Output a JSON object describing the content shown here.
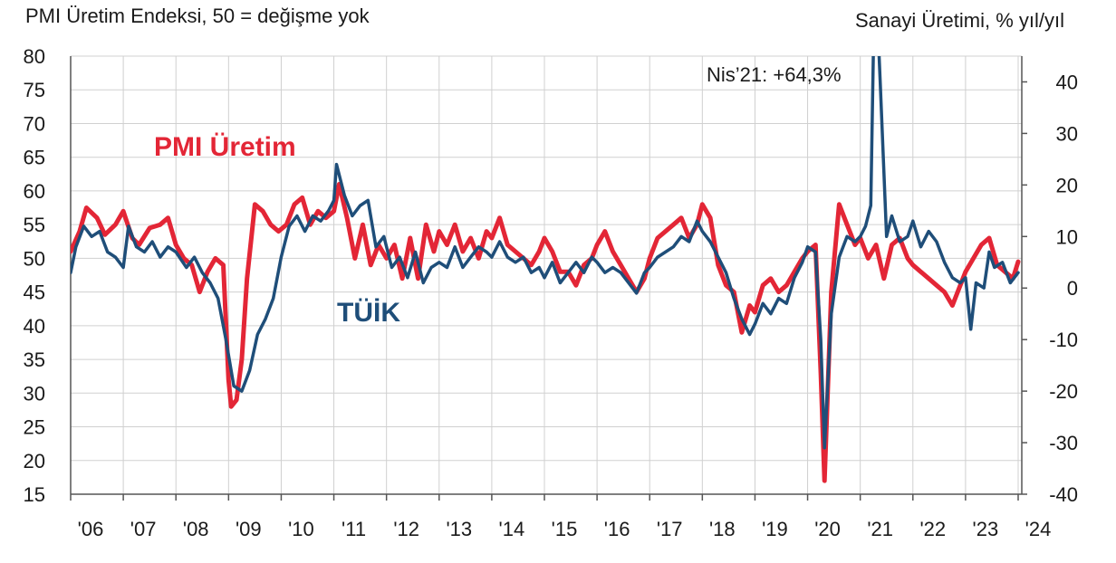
{
  "chart_data": {
    "type": "line",
    "title_left": "PMI Üretim Endeksi, 50 = değişme yok",
    "title_right": "Sanayi Üretimi, % yıl/yıl",
    "annotation": "Nis’21: +64,3%",
    "y_left": {
      "min": 15,
      "max": 80,
      "ticks": [
        80,
        75,
        70,
        65,
        60,
        55,
        50,
        45,
        40,
        35,
        30,
        25,
        20,
        15
      ]
    },
    "y_right": {
      "min": -40,
      "max": 45,
      "ticks": [
        40,
        30,
        20,
        10,
        0,
        -10,
        -20,
        -30,
        -40
      ]
    },
    "x_ticks": [
      "'06",
      "'07",
      "'08",
      "'09",
      "'10",
      "'11",
      "'12",
      "'13",
      "'14",
      "'15",
      "'16",
      "'17",
      "'18",
      "'19",
      "'20",
      "'21",
      "'22",
      "'23",
      "'24"
    ],
    "x_range": [
      2006.0,
      2024.0
    ],
    "grid": true,
    "series": [
      {
        "name": "PMI Üretim",
        "axis": "left",
        "color": "#e32636",
        "points": [
          [
            2006.0,
            51
          ],
          [
            2006.17,
            54
          ],
          [
            2006.3,
            57.5
          ],
          [
            2006.5,
            56
          ],
          [
            2006.65,
            53.5
          ],
          [
            2006.85,
            55
          ],
          [
            2007.0,
            57
          ],
          [
            2007.17,
            53
          ],
          [
            2007.3,
            52
          ],
          [
            2007.5,
            54.5
          ],
          [
            2007.7,
            55
          ],
          [
            2007.85,
            56
          ],
          [
            2008.0,
            52
          ],
          [
            2008.15,
            50
          ],
          [
            2008.3,
            49
          ],
          [
            2008.45,
            45
          ],
          [
            2008.6,
            48
          ],
          [
            2008.75,
            50
          ],
          [
            2008.9,
            49
          ],
          [
            2009.0,
            32
          ],
          [
            2009.05,
            28
          ],
          [
            2009.15,
            29
          ],
          [
            2009.25,
            35
          ],
          [
            2009.35,
            47
          ],
          [
            2009.5,
            58
          ],
          [
            2009.65,
            57
          ],
          [
            2009.8,
            55
          ],
          [
            2009.95,
            54
          ],
          [
            2010.1,
            55
          ],
          [
            2010.25,
            58
          ],
          [
            2010.4,
            59
          ],
          [
            2010.55,
            55
          ],
          [
            2010.7,
            57
          ],
          [
            2010.85,
            56
          ],
          [
            2011.0,
            57
          ],
          [
            2011.1,
            61
          ],
          [
            2011.25,
            56
          ],
          [
            2011.4,
            50
          ],
          [
            2011.55,
            55
          ],
          [
            2011.7,
            49
          ],
          [
            2011.85,
            52
          ],
          [
            2012.0,
            50
          ],
          [
            2012.15,
            52
          ],
          [
            2012.3,
            47
          ],
          [
            2012.45,
            53
          ],
          [
            2012.6,
            47
          ],
          [
            2012.75,
            55
          ],
          [
            2012.9,
            51
          ],
          [
            2013.0,
            54
          ],
          [
            2013.15,
            52
          ],
          [
            2013.3,
            55
          ],
          [
            2013.45,
            51
          ],
          [
            2013.6,
            53
          ],
          [
            2013.75,
            50
          ],
          [
            2013.9,
            54
          ],
          [
            2014.0,
            53
          ],
          [
            2014.15,
            56
          ],
          [
            2014.3,
            52
          ],
          [
            2014.45,
            51
          ],
          [
            2014.6,
            50
          ],
          [
            2014.75,
            49
          ],
          [
            2014.9,
            51
          ],
          [
            2015.0,
            53
          ],
          [
            2015.15,
            51
          ],
          [
            2015.3,
            48
          ],
          [
            2015.45,
            48
          ],
          [
            2015.6,
            46
          ],
          [
            2015.75,
            49
          ],
          [
            2015.9,
            50
          ],
          [
            2016.0,
            52
          ],
          [
            2016.15,
            54
          ],
          [
            2016.3,
            51
          ],
          [
            2016.45,
            49
          ],
          [
            2016.6,
            47
          ],
          [
            2016.75,
            45
          ],
          [
            2016.9,
            47
          ],
          [
            2017.0,
            50
          ],
          [
            2017.15,
            53
          ],
          [
            2017.3,
            54
          ],
          [
            2017.45,
            55
          ],
          [
            2017.6,
            56
          ],
          [
            2017.75,
            53
          ],
          [
            2017.9,
            55
          ],
          [
            2018.0,
            58
          ],
          [
            2018.15,
            56
          ],
          [
            2018.3,
            49
          ],
          [
            2018.45,
            46
          ],
          [
            2018.6,
            45
          ],
          [
            2018.75,
            39
          ],
          [
            2018.9,
            43
          ],
          [
            2019.0,
            42
          ],
          [
            2019.15,
            46
          ],
          [
            2019.3,
            47
          ],
          [
            2019.45,
            45
          ],
          [
            2019.6,
            46
          ],
          [
            2019.75,
            48
          ],
          [
            2019.9,
            50
          ],
          [
            2020.0,
            51
          ],
          [
            2020.15,
            52
          ],
          [
            2020.25,
            33
          ],
          [
            2020.32,
            17
          ],
          [
            2020.45,
            45
          ],
          [
            2020.6,
            58
          ],
          [
            2020.75,
            55
          ],
          [
            2020.9,
            52
          ],
          [
            2021.0,
            53
          ],
          [
            2021.15,
            50
          ],
          [
            2021.3,
            52
          ],
          [
            2021.45,
            47
          ],
          [
            2021.6,
            52
          ],
          [
            2021.75,
            53
          ],
          [
            2021.9,
            50
          ],
          [
            2022.0,
            49
          ],
          [
            2022.15,
            48
          ],
          [
            2022.3,
            47
          ],
          [
            2022.45,
            46
          ],
          [
            2022.6,
            45
          ],
          [
            2022.75,
            43
          ],
          [
            2022.9,
            46
          ],
          [
            2023.0,
            48
          ],
          [
            2023.15,
            50
          ],
          [
            2023.3,
            52
          ],
          [
            2023.45,
            53
          ],
          [
            2023.6,
            49
          ],
          [
            2023.75,
            48
          ],
          [
            2023.9,
            47
          ],
          [
            2024.0,
            49.5
          ]
        ]
      },
      {
        "name": "TÜİK",
        "axis": "right",
        "color": "#1f4e79",
        "points": [
          [
            2006.0,
            3
          ],
          [
            2006.1,
            8
          ],
          [
            2006.25,
            12
          ],
          [
            2006.4,
            10
          ],
          [
            2006.55,
            11
          ],
          [
            2006.7,
            7
          ],
          [
            2006.85,
            6
          ],
          [
            2007.0,
            4
          ],
          [
            2007.1,
            12
          ],
          [
            2007.25,
            8
          ],
          [
            2007.4,
            7
          ],
          [
            2007.55,
            9
          ],
          [
            2007.7,
            6
          ],
          [
            2007.85,
            8
          ],
          [
            2008.0,
            7
          ],
          [
            2008.2,
            4
          ],
          [
            2008.35,
            6
          ],
          [
            2008.5,
            3
          ],
          [
            2008.65,
            1
          ],
          [
            2008.8,
            -2
          ],
          [
            2008.95,
            -10
          ],
          [
            2009.1,
            -19
          ],
          [
            2009.25,
            -20
          ],
          [
            2009.4,
            -16
          ],
          [
            2009.55,
            -9
          ],
          [
            2009.7,
            -6
          ],
          [
            2009.85,
            -2
          ],
          [
            2010.0,
            6
          ],
          [
            2010.15,
            12
          ],
          [
            2010.3,
            14
          ],
          [
            2010.45,
            11
          ],
          [
            2010.6,
            14
          ],
          [
            2010.75,
            13
          ],
          [
            2010.9,
            15
          ],
          [
            2011.0,
            17
          ],
          [
            2011.05,
            24
          ],
          [
            2011.2,
            18
          ],
          [
            2011.35,
            14
          ],
          [
            2011.5,
            16
          ],
          [
            2011.65,
            17
          ],
          [
            2011.8,
            8
          ],
          [
            2011.95,
            10
          ],
          [
            2012.1,
            4
          ],
          [
            2012.25,
            6
          ],
          [
            2012.4,
            2
          ],
          [
            2012.55,
            7
          ],
          [
            2012.7,
            1
          ],
          [
            2012.85,
            4
          ],
          [
            2013.0,
            5
          ],
          [
            2013.15,
            4
          ],
          [
            2013.3,
            8
          ],
          [
            2013.45,
            4
          ],
          [
            2013.6,
            6
          ],
          [
            2013.75,
            8
          ],
          [
            2013.9,
            7
          ],
          [
            2014.0,
            6
          ],
          [
            2014.15,
            9
          ],
          [
            2014.3,
            6
          ],
          [
            2014.45,
            5
          ],
          [
            2014.6,
            6
          ],
          [
            2014.75,
            3
          ],
          [
            2014.9,
            4
          ],
          [
            2015.0,
            2
          ],
          [
            2015.15,
            5
          ],
          [
            2015.3,
            1
          ],
          [
            2015.45,
            3
          ],
          [
            2015.6,
            5
          ],
          [
            2015.75,
            3
          ],
          [
            2015.9,
            6
          ],
          [
            2016.0,
            5
          ],
          [
            2016.15,
            3
          ],
          [
            2016.3,
            4
          ],
          [
            2016.45,
            3
          ],
          [
            2016.6,
            1
          ],
          [
            2016.75,
            -1
          ],
          [
            2016.9,
            3
          ],
          [
            2017.0,
            4
          ],
          [
            2017.15,
            6
          ],
          [
            2017.3,
            7
          ],
          [
            2017.45,
            8
          ],
          [
            2017.6,
            10
          ],
          [
            2017.75,
            9
          ],
          [
            2017.9,
            13
          ],
          [
            2018.0,
            11
          ],
          [
            2018.15,
            9
          ],
          [
            2018.3,
            6
          ],
          [
            2018.45,
            3
          ],
          [
            2018.6,
            -2
          ],
          [
            2018.75,
            -6
          ],
          [
            2018.9,
            -9
          ],
          [
            2019.0,
            -7
          ],
          [
            2019.15,
            -3
          ],
          [
            2019.3,
            -5
          ],
          [
            2019.45,
            -2
          ],
          [
            2019.6,
            -3
          ],
          [
            2019.75,
            2
          ],
          [
            2019.9,
            5
          ],
          [
            2020.0,
            8
          ],
          [
            2020.15,
            7
          ],
          [
            2020.25,
            -10
          ],
          [
            2020.32,
            -31
          ],
          [
            2020.45,
            -5
          ],
          [
            2020.6,
            6
          ],
          [
            2020.75,
            10
          ],
          [
            2020.9,
            9
          ],
          [
            2021.0,
            10
          ],
          [
            2021.1,
            12
          ],
          [
            2021.2,
            16
          ],
          [
            2021.28,
            64
          ],
          [
            2021.38,
            40
          ],
          [
            2021.5,
            10
          ],
          [
            2021.6,
            14
          ],
          [
            2021.75,
            9
          ],
          [
            2021.9,
            10
          ],
          [
            2022.0,
            13
          ],
          [
            2022.15,
            8
          ],
          [
            2022.3,
            11
          ],
          [
            2022.45,
            9
          ],
          [
            2022.6,
            5
          ],
          [
            2022.75,
            2
          ],
          [
            2022.9,
            1
          ],
          [
            2023.0,
            2
          ],
          [
            2023.1,
            -8
          ],
          [
            2023.2,
            1
          ],
          [
            2023.35,
            0
          ],
          [
            2023.45,
            7
          ],
          [
            2023.55,
            4
          ],
          [
            2023.7,
            5
          ],
          [
            2023.85,
            1
          ],
          [
            2024.0,
            3
          ]
        ]
      }
    ]
  }
}
